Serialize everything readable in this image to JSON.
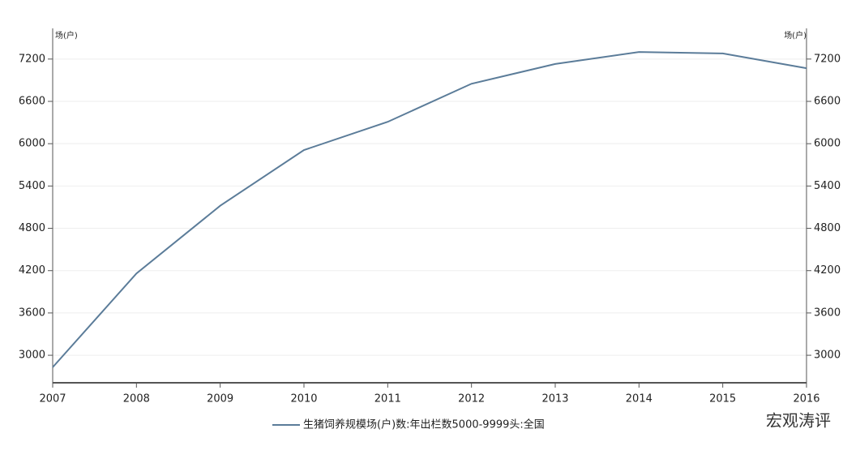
{
  "chart_data": {
    "type": "line",
    "y_label": "场(户)",
    "y2_label": "场(户)",
    "categories": [
      "2007",
      "2008",
      "2009",
      "2010",
      "2011",
      "2012",
      "2013",
      "2014",
      "2015",
      "2016"
    ],
    "series": [
      {
        "name": "生猪饲养规模场(户)数:年出栏数5000-9999头:全国",
        "color": "#5b7c99",
        "values": [
          2830,
          4160,
          5120,
          5910,
          6310,
          6850,
          7130,
          7300,
          7280,
          7070
        ]
      }
    ],
    "ylim": [
      2610,
      7520
    ],
    "yticks": [
      3000,
      3600,
      4200,
      4800,
      5400,
      6000,
      6600,
      7200
    ],
    "y2lim": [
      2610,
      7520
    ],
    "y2ticks": [
      3000,
      3600,
      4200,
      4800,
      5400,
      6000,
      6600,
      7200
    ],
    "grid": true,
    "legend": "bottom",
    "watermark": "宏观涛评"
  }
}
